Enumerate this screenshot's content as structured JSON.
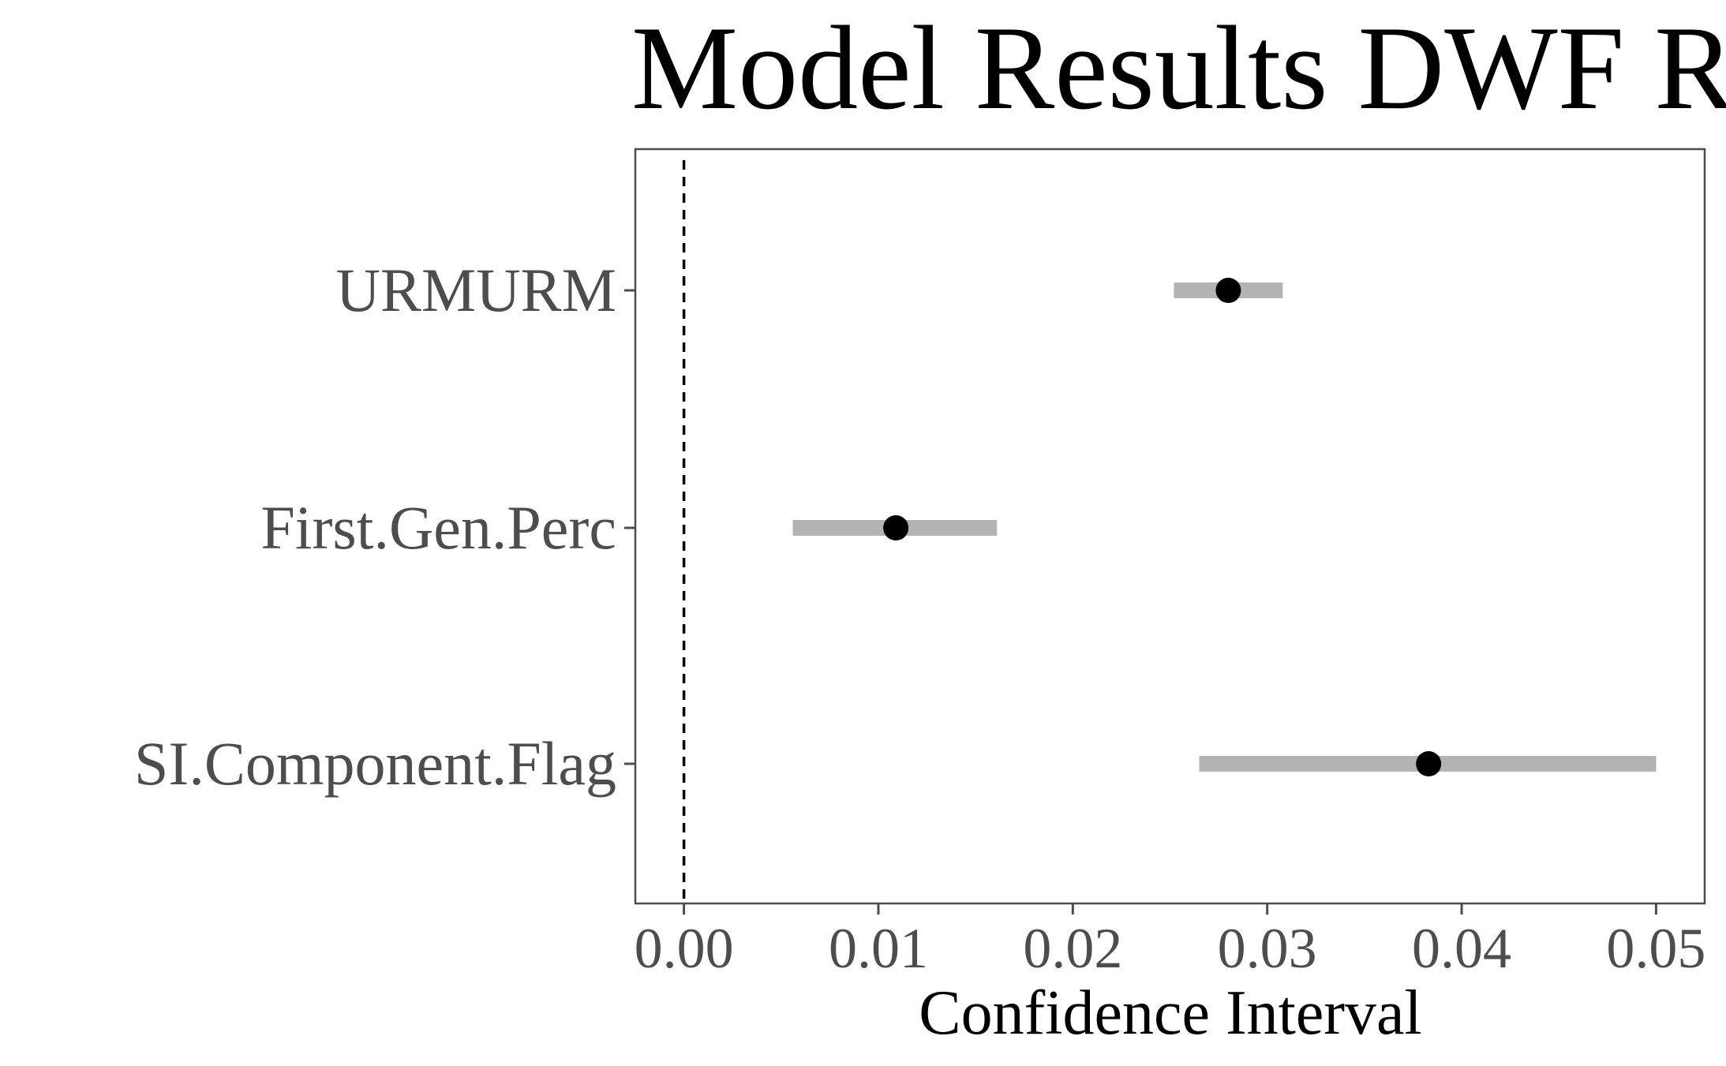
{
  "chart_data": {
    "type": "scatter",
    "title": "Model Results DWF Rate",
    "xlabel": "Confidence Interval",
    "ylabel": "",
    "xlim": [
      -0.0025,
      0.0525
    ],
    "x_ticks": [
      "0.00",
      "0.01",
      "0.02",
      "0.03",
      "0.04",
      "0.05"
    ],
    "x_tick_values": [
      0.0,
      0.01,
      0.02,
      0.03,
      0.04,
      0.05
    ],
    "reference_line": 0,
    "grid": false,
    "categories": [
      "URMURM",
      "First.Gen.Perc",
      "SI.Component.Flag"
    ],
    "estimates": [
      {
        "name": "URMURM",
        "value": 0.028,
        "low": 0.0252,
        "high": 0.0308
      },
      {
        "name": "First.Gen.Perc",
        "value": 0.0109,
        "low": 0.0056,
        "high": 0.0161
      },
      {
        "name": "SI.Component.Flag",
        "value": 0.0383,
        "low": 0.0265,
        "high": 0.05
      }
    ],
    "colors": {
      "interval": "#b3b3b3",
      "point": "#000000",
      "axis": "#4d4d4d"
    }
  }
}
